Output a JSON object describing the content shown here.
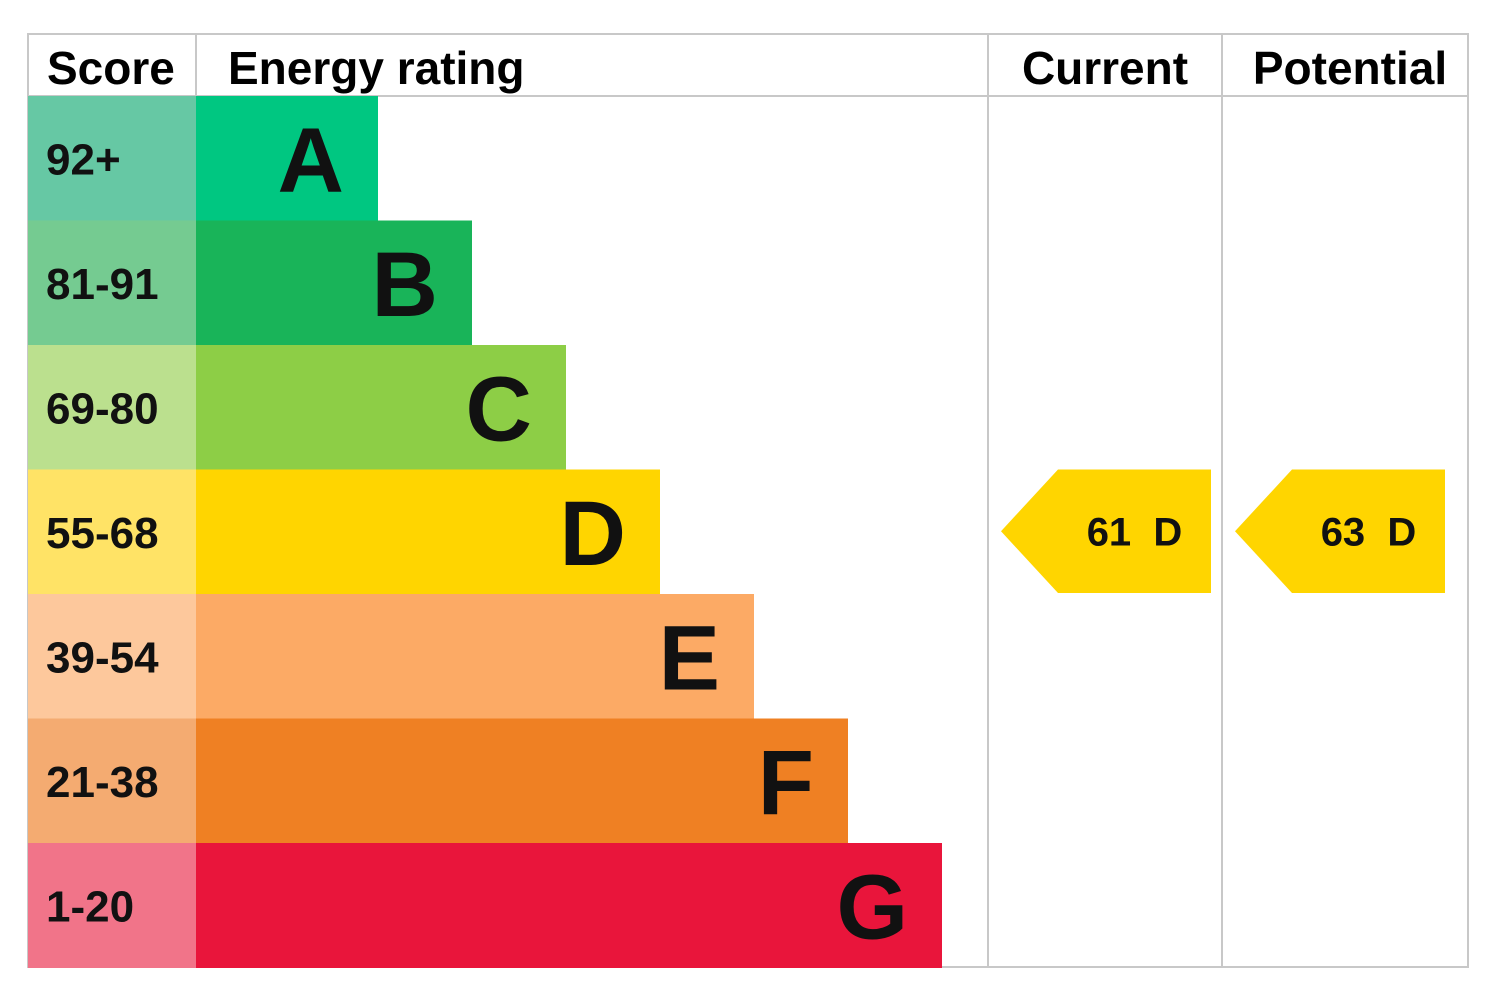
{
  "chart_data": {
    "type": "bar",
    "title": "",
    "columns": {
      "score": "Score",
      "energy_rating": "Energy rating",
      "current": "Current",
      "potential": "Potential"
    },
    "bands": [
      {
        "letter": "A",
        "score_range": "92+",
        "color": "#00c781",
        "score_color": "#66c8a4"
      },
      {
        "letter": "B",
        "score_range": "81-91",
        "color": "#19b459",
        "score_color": "#75cb91"
      },
      {
        "letter": "C",
        "score_range": "69-80",
        "color": "#8dce46",
        "score_color": "#bbe08e"
      },
      {
        "letter": "D",
        "score_range": "55-68",
        "color": "#ffd500",
        "score_color": "#ffe366"
      },
      {
        "letter": "E",
        "score_range": "39-54",
        "color": "#fcaa65",
        "score_color": "#fdc89c"
      },
      {
        "letter": "F",
        "score_range": "21-38",
        "color": "#ef8023",
        "score_color": "#f4ab71"
      },
      {
        "letter": "G",
        "score_range": "1-20",
        "color": "#e9153b",
        "score_color": "#f17489"
      }
    ],
    "current": {
      "value": 61,
      "band": "D"
    },
    "potential": {
      "value": 63,
      "band": "D"
    },
    "grid_color": "#c8c8c8"
  }
}
